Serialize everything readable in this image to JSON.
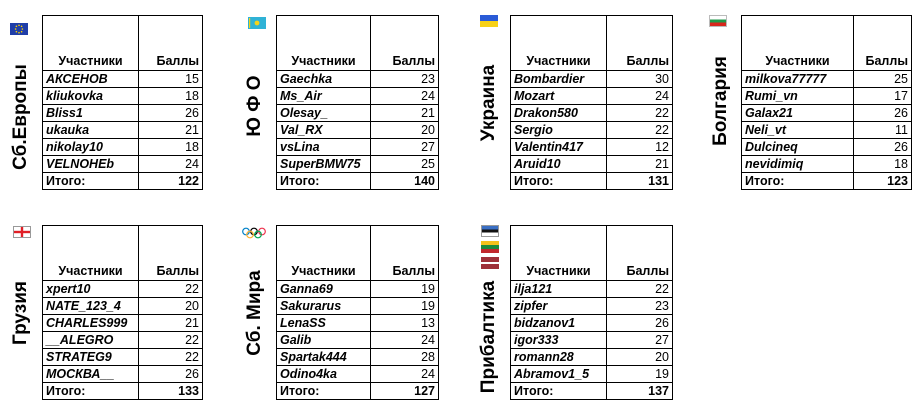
{
  "header_participants": "Участники",
  "header_points": "Баллы",
  "total_label": "Итого:",
  "teams": [
    {
      "name": "Сб.Европы",
      "flag": "eu-flag",
      "rows": [
        [
          "АКСЕНОВ",
          "15"
        ],
        [
          "kliukovka",
          "18"
        ],
        [
          "Bliss1",
          "26"
        ],
        [
          "ukauka",
          "21"
        ],
        [
          "nikolay10",
          "18"
        ],
        [
          "VELNOHEb",
          "24"
        ]
      ],
      "total": "122"
    },
    {
      "name": "Ю Ф О",
      "flag": "kazakhstan-flag",
      "rows": [
        [
          "Gaechka",
          "23"
        ],
        [
          "Ms_Air",
          "24"
        ],
        [
          "Olesay_",
          "21"
        ],
        [
          "Val_RX",
          "20"
        ],
        [
          "vsLina",
          "27"
        ],
        [
          "SuperBMW75",
          "25"
        ]
      ],
      "total": "140"
    },
    {
      "name": "Украина",
      "flag": "ukraine-flag",
      "rows": [
        [
          "Bombardier",
          "30"
        ],
        [
          "Mozart",
          "24"
        ],
        [
          "Drakon580",
          "22"
        ],
        [
          "Sergio",
          "22"
        ],
        [
          "Valentin417",
          "12"
        ],
        [
          "Aruid10",
          "21"
        ]
      ],
      "total": "131"
    },
    {
      "name": "Болгария",
      "flag": "bulgaria-flag",
      "rows": [
        [
          "milkova77777",
          "25"
        ],
        [
          "Rumi_vn",
          "17"
        ],
        [
          "Galax21",
          "26"
        ],
        [
          "Neli_vt",
          "11"
        ],
        [
          "Dulcineq",
          "26"
        ],
        [
          "nevidimiq",
          "18"
        ]
      ],
      "total": "123"
    },
    {
      "name": "Грузия",
      "flag": "georgia-flag",
      "rows": [
        [
          "xpert10",
          "22"
        ],
        [
          "NATE_123_4",
          "20"
        ],
        [
          "CHARLES999",
          "21"
        ],
        [
          "__ALEGRO",
          "22"
        ],
        [
          "STRATEG9",
          "22"
        ],
        [
          "МОСКВА__",
          "26"
        ]
      ],
      "total": "133"
    },
    {
      "name": "Сб. Мира",
      "flag": "olympic-rings-flag",
      "rows": [
        [
          "Ganna69",
          "19"
        ],
        [
          "Sakurarus",
          "19"
        ],
        [
          "LenaSS",
          "13"
        ],
        [
          "Galib",
          "24"
        ],
        [
          "Spartak444",
          "28"
        ],
        [
          "Odino4ka",
          "24"
        ]
      ],
      "total": "127"
    },
    {
      "name": "Прибалтика",
      "flag": "baltic-flags",
      "rows": [
        [
          "ilja121",
          "22"
        ],
        [
          "zipfer",
          "23"
        ],
        [
          "bidzanov1",
          "26"
        ],
        [
          "igor333",
          "27"
        ],
        [
          "romann28",
          "20"
        ],
        [
          "Abramov1_5",
          "19"
        ]
      ],
      "total": "137"
    }
  ]
}
